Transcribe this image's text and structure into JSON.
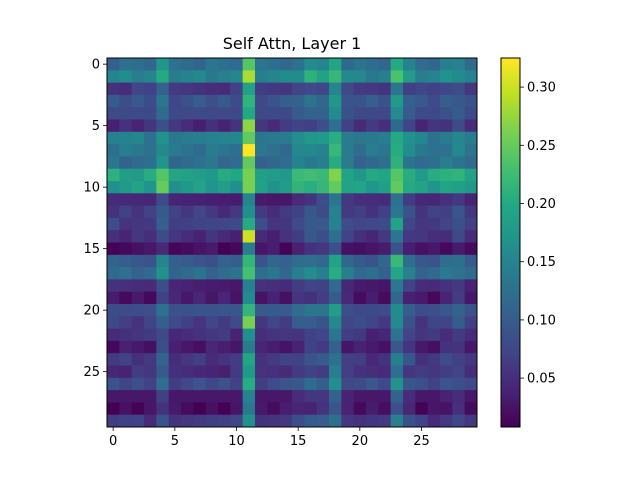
{
  "chart_data": {
    "type": "heatmap",
    "title": "Self Attn, Layer 1",
    "xlabel": "",
    "ylabel": "",
    "rows": 30,
    "cols": 30,
    "x_ticks": [
      0,
      5,
      10,
      15,
      20,
      25
    ],
    "y_ticks": [
      0,
      5,
      10,
      15,
      20,
      25
    ],
    "colorbar": {
      "min": 0.008,
      "max": 0.325,
      "ticks": [
        "0.05",
        "0.10",
        "0.15",
        "0.20",
        "0.25",
        "0.30"
      ],
      "tick_values": [
        0.05,
        0.1,
        0.15,
        0.2,
        0.25,
        0.3
      ]
    },
    "colormap": "viridis",
    "base_row_levels": [
      0.12,
      0.15,
      0.06,
      0.09,
      0.08,
      0.05,
      0.14,
      0.13,
      0.12,
      0.19,
      0.18,
      0.04,
      0.06,
      0.07,
      0.05,
      0.02,
      0.1,
      0.12,
      0.04,
      0.03,
      0.09,
      0.07,
      0.05,
      0.03,
      0.06,
      0.05,
      0.08,
      0.03,
      0.02,
      0.06
    ],
    "col_offsets": [
      0.0,
      0.0,
      0.0,
      0.0,
      0.04,
      0.0,
      0.0,
      0.0,
      0.0,
      0.0,
      0.0,
      0.12,
      0.0,
      0.0,
      0.0,
      0.02,
      0.03,
      0.03,
      0.08,
      0.01,
      0.0,
      0.0,
      0.0,
      0.08,
      0.02,
      0.0,
      0.0,
      0.01,
      0.02,
      0.0
    ],
    "notable_cells": [
      {
        "row": 7,
        "col": 11,
        "value": 0.325
      },
      {
        "row": 14,
        "col": 11,
        "value": 0.3
      },
      {
        "row": 5,
        "col": 11,
        "value": 0.27
      },
      {
        "row": 21,
        "col": 11,
        "value": 0.26
      },
      {
        "row": 9,
        "col": 11,
        "value": 0.26
      },
      {
        "row": 10,
        "col": 11,
        "value": 0.26
      },
      {
        "row": 10,
        "col": 4,
        "value": 0.25
      },
      {
        "row": 0,
        "col": 11,
        "value": 0.24
      },
      {
        "row": 9,
        "col": 23,
        "value": 0.24
      },
      {
        "row": 1,
        "col": 16,
        "value": 0.21
      },
      {
        "row": 0,
        "col": 23,
        "value": 0.2
      },
      {
        "row": 6,
        "col": 23,
        "value": 0.2
      },
      {
        "row": 16,
        "col": 23,
        "value": 0.22
      },
      {
        "row": 13,
        "col": 23,
        "value": 0.19
      },
      {
        "row": 9,
        "col": 0,
        "value": 0.21
      }
    ]
  }
}
